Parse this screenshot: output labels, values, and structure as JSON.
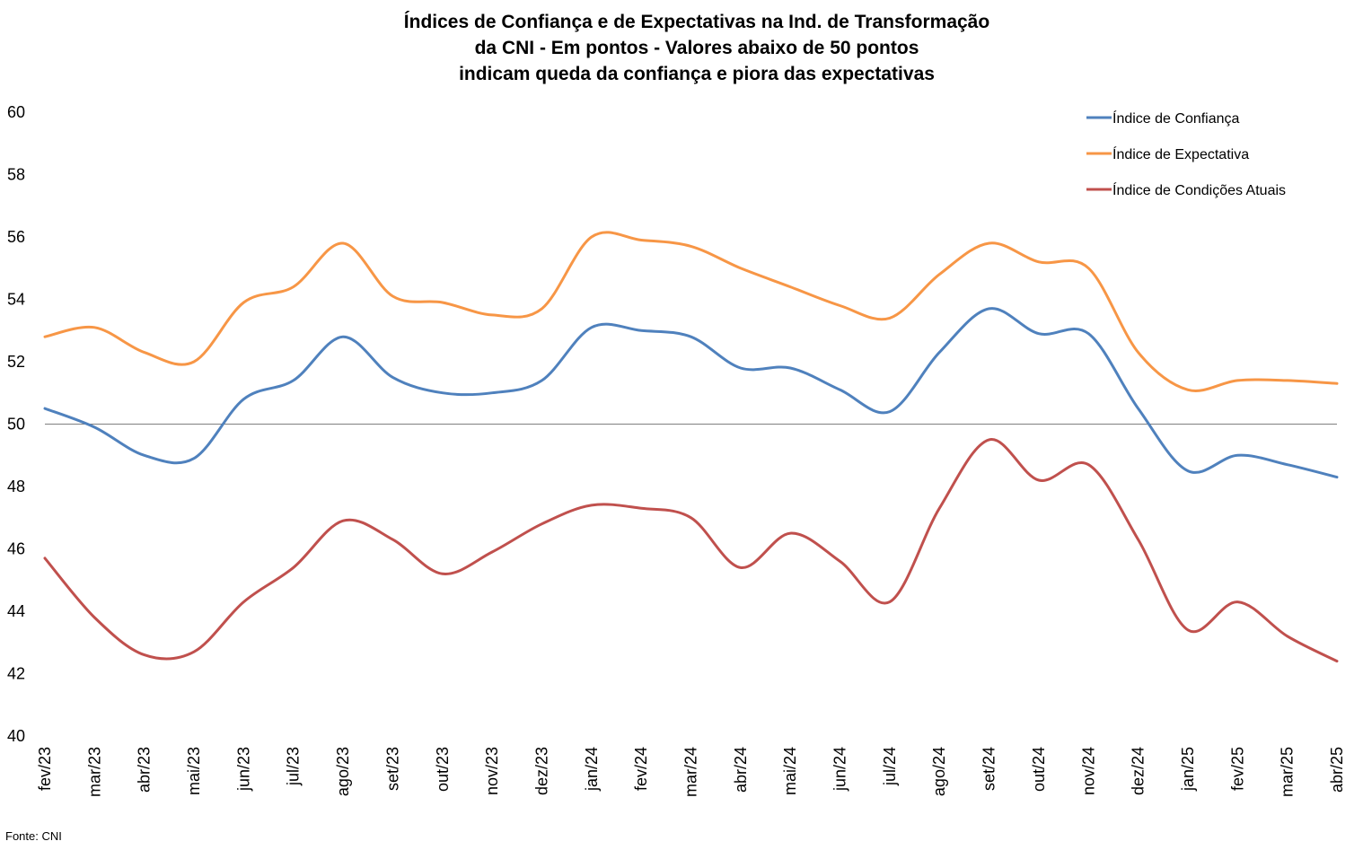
{
  "chart_data": {
    "type": "line",
    "title": [
      "Índices de Confiança e de Expectativas na Ind. de Transformação",
      "da CNI - Em pontos - Valores abaixo de 50 pontos",
      "indicam queda da confiança e piora das expectativas"
    ],
    "categories": [
      "fev/23",
      "mar/23",
      "abr/23",
      "mai/23",
      "jun/23",
      "jul/23",
      "ago/23",
      "set/23",
      "out/23",
      "nov/23",
      "dez/23",
      "jan/24",
      "fev/24",
      "mar/24",
      "abr/24",
      "mai/24",
      "jun/24",
      "jul/24",
      "ago/24",
      "set/24",
      "out/24",
      "nov/24",
      "dez/24",
      "jan/25",
      "fev/25",
      "mar/25",
      "abr/25"
    ],
    "ylim": [
      40,
      60
    ],
    "yticks": [
      40,
      42,
      44,
      46,
      48,
      50,
      52,
      54,
      56,
      58,
      60
    ],
    "reference_line": 50,
    "series": [
      {
        "name": "Índice de Confiança",
        "color": "#4F81BD",
        "values": [
          50.5,
          49.9,
          49.0,
          48.9,
          50.8,
          51.4,
          52.8,
          51.5,
          51.0,
          51.0,
          51.4,
          53.1,
          53.0,
          52.8,
          51.8,
          51.8,
          51.1,
          50.4,
          52.3,
          53.7,
          52.9,
          52.9,
          50.5,
          48.5,
          49.0,
          48.7,
          48.3
        ]
      },
      {
        "name": "Índice de Expectativa",
        "color": "#F79646",
        "values": [
          52.8,
          53.1,
          52.3,
          52.0,
          53.9,
          54.4,
          55.8,
          54.1,
          53.9,
          53.5,
          53.7,
          56.0,
          55.9,
          55.7,
          55.0,
          54.4,
          53.8,
          53.4,
          54.8,
          55.8,
          55.2,
          55.0,
          52.3,
          51.1,
          51.4,
          51.4,
          51.3
        ]
      },
      {
        "name": "Índice de Condições Atuais",
        "color": "#C0504D",
        "values": [
          45.7,
          43.8,
          42.6,
          42.7,
          44.3,
          45.4,
          46.9,
          46.3,
          45.2,
          45.9,
          46.8,
          47.4,
          47.3,
          47.0,
          45.4,
          46.5,
          45.6,
          44.3,
          47.3,
          49.5,
          48.2,
          48.7,
          46.3,
          43.4,
          44.3,
          43.2,
          42.4
        ]
      }
    ],
    "legend_position": "top-right",
    "grid": false
  },
  "footer": {
    "source": "Fonte: CNI"
  }
}
